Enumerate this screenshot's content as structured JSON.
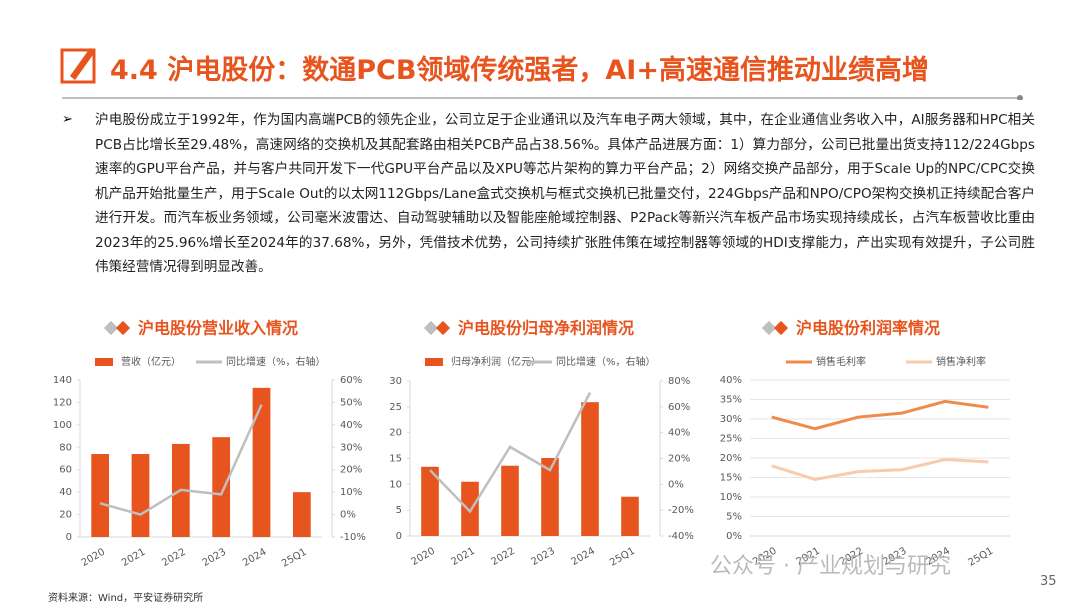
{
  "header": {
    "title": "4.4 沪电股份：数通PCB领域传统强者，AI+高速通信推动业绩高增"
  },
  "body": "沪电股份成立于1992年，作为国内高端PCB的领先企业，公司立足于企业通讯以及汽车电子两大领域，其中，在企业通信业务收入中，AI服务器和HPC相关PCB占比增长至29.48%，高速网络的交换机及其配套路由相关PCB产品占38.56%。具体产品进展方面：1）算力部分，公司已批量出货支持112/224Gbps速率的GPU平台产品，并与客户共同开发下一代GPU平台产品以及XPU等芯片架构的算力平台产品；2）网络交换产品部分，用于Scale Up的NPC/CPC交换机产品开始批量生产，用于Scale Out的以太网112Gbps/Lane盒式交换机与框式交换机已批量交付，224Gbps产品和NPO/CPO架构交换机正持续配合客户进行开发。而汽车板业务领域，公司毫米波雷达、自动驾驶辅助以及智能座舱域控制器、P2Pack等新兴汽车板产品市场实现持续成长，占汽车板营收比重由2023年的25.96%增长至2024年的37.68%，另外，凭借技术优势，公司持续扩张胜伟策在域控制器等领域的HDI支撑能力，产出实现有效提升，子公司胜伟策经营情况得到明显改善。",
  "source": "资料来源：Wind，平安证券研究所",
  "watermark": "公众号 · 产业规划与研究",
  "page_number": "35",
  "chart_data": [
    {
      "type": "bar-line",
      "title": "沪电股份营业收入情况",
      "categories": [
        "2020",
        "2021",
        "2022",
        "2023",
        "2024",
        "25Q1"
      ],
      "series": [
        {
          "name": "营收（亿元）",
          "color": "#e8541e",
          "type": "bar",
          "values": [
            74,
            74,
            83,
            89,
            133,
            40
          ]
        },
        {
          "name": "同比增速（%，右轴）",
          "color": "#bfbfbf",
          "type": "line",
          "axis": "y2",
          "values": [
            5,
            0,
            11,
            9,
            49,
            null
          ]
        }
      ],
      "ylim": [
        0,
        140
      ],
      "yticks": [
        0,
        20,
        40,
        60,
        80,
        100,
        120,
        140
      ],
      "y2lim": [
        -10,
        60
      ],
      "y2ticks": [
        {
          "value": -10,
          "label": "-10%"
        },
        {
          "value": 0,
          "label": "0%"
        },
        {
          "value": 10,
          "label": "10%"
        },
        {
          "value": 20,
          "label": "20%"
        },
        {
          "value": 30,
          "label": "30%"
        },
        {
          "value": 40,
          "label": "40%"
        },
        {
          "value": 50,
          "label": "50%"
        },
        {
          "value": 60,
          "label": "60%"
        }
      ]
    },
    {
      "type": "bar-line",
      "title": "沪电股份归母净利润情况",
      "categories": [
        "2020",
        "2021",
        "2022",
        "2023",
        "2024",
        "25Q1"
      ],
      "series": [
        {
          "name": "归母净利润（亿元）",
          "color": "#e8541e",
          "type": "bar",
          "values": [
            13.4,
            10.5,
            13.6,
            15.1,
            25.9,
            7.6
          ]
        },
        {
          "name": "同比增速（%，右轴）",
          "color": "#bfbfbf",
          "type": "line",
          "axis": "y2",
          "values": [
            11,
            -21,
            29,
            11,
            71,
            null
          ]
        }
      ],
      "ylim": [
        0,
        30
      ],
      "yticks": [
        0,
        5,
        10,
        15,
        20,
        25,
        30
      ],
      "y2lim": [
        -40,
        80
      ],
      "y2ticks": [
        {
          "value": -40,
          "label": "-40%"
        },
        {
          "value": -20,
          "label": "-20%"
        },
        {
          "value": 0,
          "label": "0%"
        },
        {
          "value": 20,
          "label": "20%"
        },
        {
          "value": 40,
          "label": "40%"
        },
        {
          "value": 60,
          "label": "60%"
        },
        {
          "value": 80,
          "label": "80%"
        }
      ]
    },
    {
      "type": "line",
      "title": "沪电股份利润率情况",
      "categories": [
        "2020",
        "2021",
        "2022",
        "2023",
        "2024",
        "25Q1"
      ],
      "series": [
        {
          "name": "销售毛利率",
          "color": "#f08a4b",
          "type": "line",
          "values": [
            30.5,
            27.5,
            30.5,
            31.5,
            34.5,
            33
          ]
        },
        {
          "name": "销售净利率",
          "color": "#f8cbad",
          "type": "line",
          "values": [
            18,
            14.5,
            16.5,
            17,
            19.6,
            19
          ]
        }
      ],
      "ylim": [
        0,
        40
      ],
      "yticks": [
        {
          "value": 0,
          "label": "0%"
        },
        {
          "value": 5,
          "label": "5%"
        },
        {
          "value": 10,
          "label": "10%"
        },
        {
          "value": 15,
          "label": "15%"
        },
        {
          "value": 20,
          "label": "20%"
        },
        {
          "value": 25,
          "label": "25%"
        },
        {
          "value": 30,
          "label": "30%"
        },
        {
          "value": 35,
          "label": "35%"
        },
        {
          "value": 40,
          "label": "40%"
        }
      ]
    }
  ]
}
